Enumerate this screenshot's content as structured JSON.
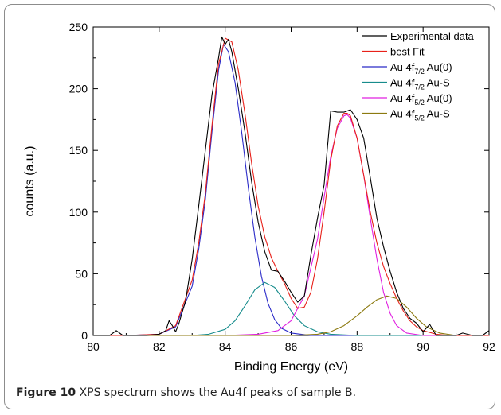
{
  "caption": {
    "label": "Figure 10",
    "text": "XPS spectrum shows the Au4f peaks of sample B",
    "end": "."
  },
  "chart_data": {
    "type": "line",
    "xlabel": "Binding Energy (eV)",
    "ylabel": "counts (a.u.)",
    "xlim": [
      80,
      92
    ],
    "ylim": [
      0,
      250
    ],
    "xticks": [
      80,
      82,
      84,
      86,
      88,
      90,
      92
    ],
    "yticks": [
      0,
      50,
      100,
      150,
      200,
      250
    ],
    "legend_position": "top-right",
    "series": [
      {
        "name": "Experimental data",
        "color": "#000000",
        "x": [
          80.0,
          80.5,
          80.7,
          80.9,
          81.2,
          81.6,
          82.0,
          82.2,
          82.3,
          82.4,
          82.5,
          82.6,
          82.8,
          83.0,
          83.2,
          83.4,
          83.6,
          83.8,
          83.9,
          84.0,
          84.1,
          84.2,
          84.4,
          84.6,
          84.8,
          85.0,
          85.2,
          85.4,
          85.6,
          85.8,
          86.0,
          86.2,
          86.4,
          86.6,
          86.8,
          87.0,
          87.2,
          87.4,
          87.6,
          87.8,
          88.0,
          88.2,
          88.4,
          88.6,
          88.8,
          89.0,
          89.2,
          89.4,
          89.6,
          89.8,
          90.0,
          90.2,
          90.4,
          90.6,
          90.8,
          91.0,
          91.2,
          91.5,
          91.8,
          92.0
        ],
        "y": [
          0,
          0,
          4,
          0,
          0,
          0,
          1,
          4,
          12,
          8,
          3,
          10,
          28,
          62,
          105,
          150,
          195,
          225,
          242,
          236,
          240,
          230,
          200,
          165,
          125,
          92,
          68,
          53,
          52,
          44,
          35,
          27,
          32,
          65,
          95,
          122,
          182,
          181,
          181,
          183,
          175,
          160,
          128,
          95,
          72,
          52,
          35,
          22,
          14,
          10,
          3,
          9,
          0,
          0,
          0,
          0,
          2,
          0,
          0,
          4
        ]
      },
      {
        "name": "best Fit",
        "color": "#e8211a",
        "x": [
          80.0,
          81.0,
          82.0,
          82.5,
          83.0,
          83.2,
          83.4,
          83.6,
          83.8,
          84.0,
          84.2,
          84.4,
          84.6,
          84.8,
          85.0,
          85.2,
          85.4,
          85.6,
          85.8,
          86.0,
          86.2,
          86.4,
          86.6,
          86.8,
          87.0,
          87.2,
          87.4,
          87.6,
          87.7,
          87.8,
          88.0,
          88.2,
          88.4,
          88.6,
          88.8,
          89.0,
          89.2,
          89.4,
          89.6,
          89.8,
          90.0,
          90.4,
          90.8,
          91.2,
          92.0
        ],
        "y": [
          0,
          0,
          1,
          8,
          45,
          75,
          115,
          170,
          220,
          241,
          238,
          215,
          180,
          140,
          105,
          80,
          63,
          52,
          42,
          30,
          22,
          23,
          35,
          62,
          100,
          142,
          170,
          180,
          180,
          178,
          160,
          130,
          100,
          75,
          56,
          42,
          30,
          20,
          12,
          7,
          4,
          1,
          0,
          0,
          0
        ]
      },
      {
        "name": "Au 4f7/2 Au(0)",
        "color": "#2a2ac8",
        "x": [
          80.0,
          81.0,
          82.0,
          82.5,
          83.0,
          83.2,
          83.4,
          83.6,
          83.8,
          83.95,
          84.1,
          84.3,
          84.5,
          84.7,
          84.9,
          85.1,
          85.3,
          85.5,
          85.7,
          86.0,
          86.3,
          86.6,
          87.0,
          88.0,
          92.0
        ],
        "y": [
          0,
          0,
          1,
          7,
          40,
          70,
          110,
          165,
          215,
          236,
          230,
          205,
          165,
          120,
          80,
          48,
          26,
          13,
          6,
          2,
          1,
          0,
          0,
          0,
          0
        ]
      },
      {
        "name": "Au 4f7/2 Au-S",
        "color": "#178c8c",
        "x": [
          80.0,
          82.0,
          83.0,
          83.5,
          84.0,
          84.3,
          84.6,
          84.9,
          85.2,
          85.5,
          85.8,
          86.1,
          86.4,
          86.8,
          87.2,
          88.0,
          89.0,
          92.0
        ],
        "y": [
          0,
          0,
          0,
          1,
          5,
          12,
          24,
          37,
          43,
          39,
          28,
          16,
          8,
          3,
          1,
          0,
          0,
          0
        ]
      },
      {
        "name": "Au 4f5/2 Au(0)",
        "color": "#e020e0",
        "x": [
          80.0,
          84.0,
          85.0,
          85.6,
          86.0,
          86.4,
          86.8,
          87.0,
          87.2,
          87.4,
          87.6,
          87.7,
          87.8,
          88.0,
          88.2,
          88.4,
          88.6,
          88.8,
          89.0,
          89.2,
          89.5,
          90.0,
          91.0,
          92.0
        ],
        "y": [
          0,
          0,
          1,
          4,
          12,
          32,
          78,
          112,
          145,
          168,
          178,
          179,
          176,
          160,
          130,
          95,
          62,
          35,
          18,
          8,
          2,
          0,
          0,
          0
        ]
      },
      {
        "name": "Au 4f5/2 Au-S",
        "color": "#8c7a10",
        "x": [
          80.0,
          86.0,
          86.8,
          87.2,
          87.6,
          88.0,
          88.3,
          88.6,
          88.9,
          89.2,
          89.5,
          89.8,
          90.1,
          90.5,
          91.0,
          92.0
        ],
        "y": [
          0,
          0,
          1,
          3,
          8,
          16,
          23,
          29,
          32,
          30,
          23,
          14,
          7,
          2,
          0,
          0
        ]
      }
    ],
    "legend_labels": [
      {
        "main": "Experimental data",
        "sub": "",
        "tail": ""
      },
      {
        "main": "best Fit",
        "sub": "",
        "tail": ""
      },
      {
        "main": "Au 4f",
        "sub": "7/2",
        "tail": " Au(0)"
      },
      {
        "main": "Au 4f",
        "sub": "7/2",
        "tail": " Au-S"
      },
      {
        "main": "Au 4f",
        "sub": "5/2",
        "tail": " Au(0)"
      },
      {
        "main": "Au 4f",
        "sub": "5/2",
        "tail": " Au-S"
      }
    ]
  }
}
